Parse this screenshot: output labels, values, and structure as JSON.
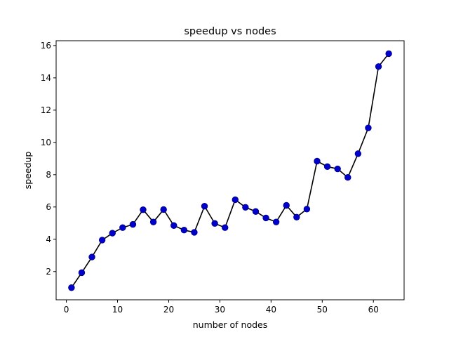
{
  "chart_data": {
    "type": "line",
    "title": "speedup vs nodes",
    "xlabel": "number of nodes",
    "ylabel": "speedup",
    "xlim": [
      -2,
      66
    ],
    "ylim": [
      0.25,
      16.3
    ],
    "xticks": [
      0,
      10,
      20,
      30,
      40,
      50,
      60
    ],
    "yticks": [
      2,
      4,
      6,
      8,
      10,
      12,
      14,
      16
    ],
    "grid": false,
    "line_color": "#000000",
    "marker_color": "#0000cd",
    "series": [
      {
        "x": [
          1,
          3,
          5,
          7,
          9,
          11,
          13,
          15,
          17,
          19,
          21,
          23,
          25,
          27,
          29,
          31,
          33,
          35,
          37,
          39,
          41,
          43,
          45,
          47,
          49,
          51,
          53,
          55,
          57,
          59,
          61,
          63
        ],
        "y": [
          1.0,
          1.93,
          2.9,
          3.95,
          4.38,
          4.72,
          4.92,
          5.83,
          5.07,
          5.84,
          4.85,
          4.57,
          4.43,
          6.05,
          4.98,
          4.72,
          6.45,
          5.98,
          5.72,
          5.32,
          5.07,
          6.1,
          5.37,
          5.87,
          8.84,
          8.5,
          8.36,
          7.83,
          9.3,
          10.9,
          14.7,
          15.5
        ]
      }
    ]
  }
}
